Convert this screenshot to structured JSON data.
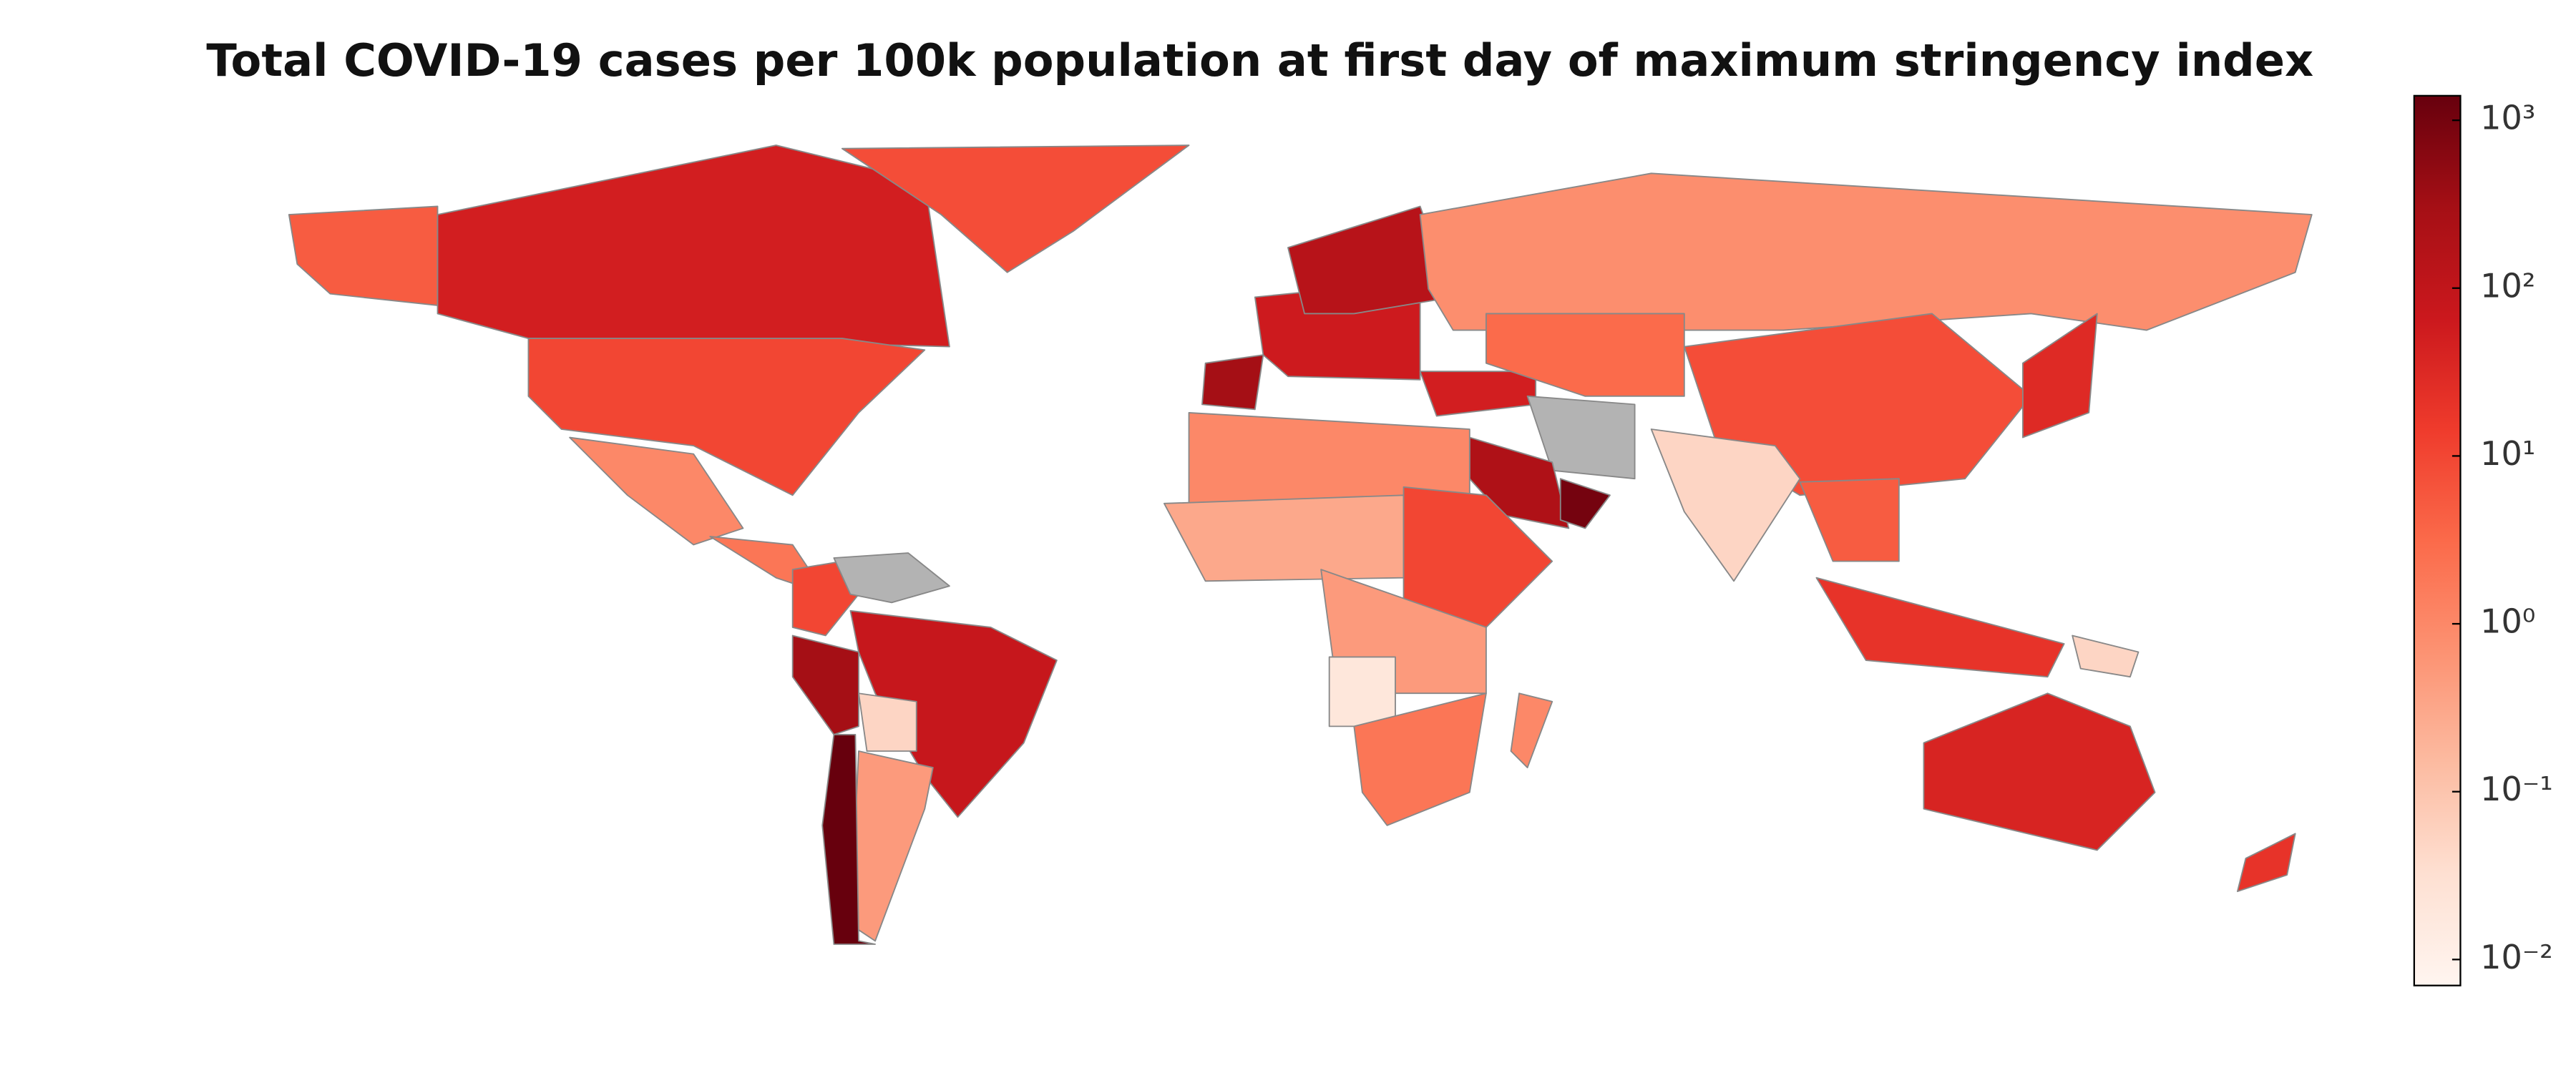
{
  "chart_data": {
    "type": "choropleth",
    "title": "Total COVID-19 cases per 100k population at first day of maximum stringency index",
    "values": [
      5,
      50,
      8,
      10,
      1,
      2,
      10,
      null,
      300,
      80,
      0.05,
      0.5,
      1400,
      300,
      60,
      150,
      0.8,
      50,
      null,
      200,
      1000,
      3,
      8,
      0.05,
      5,
      20,
      30,
      1,
      0.3,
      10,
      0.5,
      0.02,
      2,
      1,
      40,
      20,
      0.05
    ],
    "log_scale": true,
    "clim": [
      0.007,
      1400
    ],
    "colormap": [
      "#fff5f0",
      "#fee0d2",
      "#fcbba1",
      "#fc9272",
      "#fb6a4a",
      "#ef3b2c",
      "#cb181d",
      "#a50f15",
      "#67000d"
    ],
    "missing_color": "#b3b3b3",
    "border_color": "#888888",
    "colorbar_ticks": [
      {
        "value": 0.01,
        "label": "10⁻²"
      },
      {
        "value": 0.1,
        "label": "10⁻¹"
      },
      {
        "value": 1,
        "label": "10⁰"
      },
      {
        "value": 10,
        "label": "10¹"
      },
      {
        "value": 100,
        "label": "10²"
      },
      {
        "value": 1000,
        "label": "10³"
      }
    ]
  }
}
